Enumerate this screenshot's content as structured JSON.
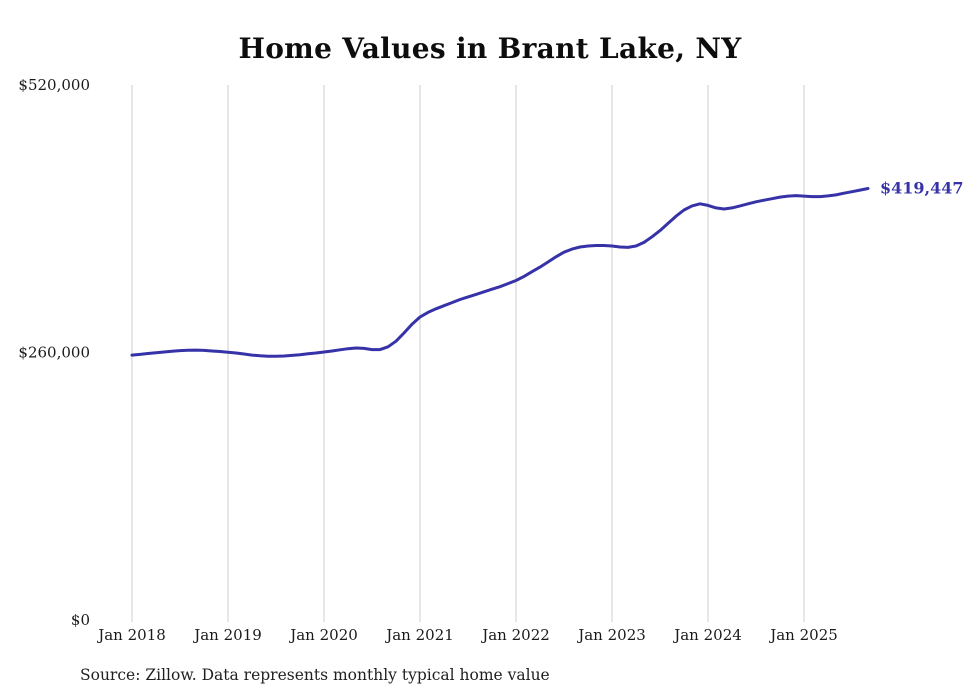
{
  "chart_data": {
    "type": "line",
    "title": "Home Values in Brant Lake, NY",
    "source": "Source: Zillow. Data represents monthly typical home value",
    "end_label": "$419,447",
    "frequency": "monthly",
    "start": "Jan 2018",
    "ylim": [
      0,
      520000
    ],
    "grid": "vertical-only",
    "y_ticks": [
      {
        "label": "$520,000",
        "value": 520000
      },
      {
        "label": "$260,000",
        "value": 260000
      },
      {
        "label": "$0",
        "value": 0
      }
    ],
    "x_ticks": [
      {
        "label": "Jan 2018",
        "month_index": 0
      },
      {
        "label": "Jan 2019",
        "month_index": 12
      },
      {
        "label": "Jan 2020",
        "month_index": 24
      },
      {
        "label": "Jan 2021",
        "month_index": 36
      },
      {
        "label": "Jan 2022",
        "month_index": 48
      },
      {
        "label": "Jan 2023",
        "month_index": 60
      },
      {
        "label": "Jan 2024",
        "month_index": 72
      },
      {
        "label": "Jan 2025",
        "month_index": 84
      }
    ],
    "series": [
      {
        "name": "Typical home value",
        "values": [
          257500,
          258200,
          259000,
          259800,
          260500,
          261200,
          261800,
          262200,
          262300,
          262000,
          261500,
          261000,
          260300,
          259500,
          258500,
          257500,
          256800,
          256400,
          256300,
          256600,
          257200,
          257900,
          258700,
          259500,
          260500,
          261500,
          262600,
          263700,
          264400,
          264000,
          262800,
          262800,
          265500,
          271000,
          279000,
          287500,
          294500,
          299000,
          302500,
          305500,
          308500,
          311500,
          314000,
          316500,
          319000,
          321500,
          324000,
          327000,
          330000,
          334000,
          338500,
          343000,
          348000,
          353000,
          357500,
          360500,
          362500,
          363500,
          364000,
          364000,
          363500,
          362500,
          362200,
          363500,
          367000,
          372500,
          378500,
          385500,
          392500,
          398500,
          402500,
          404500,
          403000,
          400500,
          399500,
          400500,
          402500,
          404500,
          406500,
          408000,
          409500,
          411000,
          412000,
          412500,
          412000,
          411500,
          411500,
          412200,
          413200,
          414800,
          416300,
          417800,
          419447
        ]
      }
    ],
    "colors": {
      "line": "#3632a8",
      "grid": "#cccccc",
      "axis_text": "#1a1a1a",
      "end_label": "#3632a8"
    }
  }
}
